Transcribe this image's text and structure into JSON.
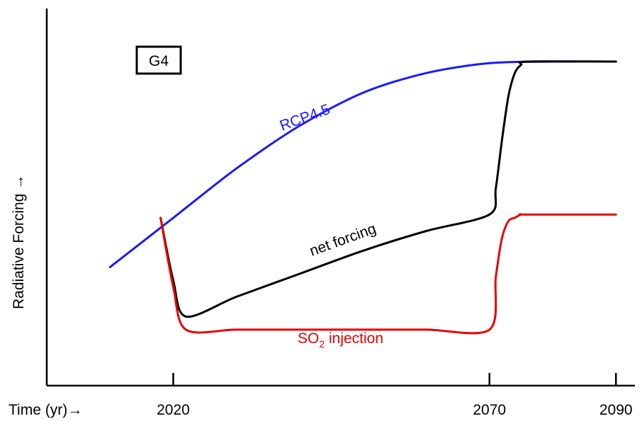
{
  "chart_data": {
    "type": "line",
    "title": "",
    "xlabel": "Time (yr)→",
    "ylabel": "Radiative Forcing →",
    "xlim": [
      2000,
      2093
    ],
    "ylim": [
      0,
      1
    ],
    "x_ticks": [
      "2020",
      "2070",
      "2090"
    ],
    "grid": false,
    "legend": "none",
    "scenario_box": "G4",
    "series": [
      {
        "name": "RCP4.5",
        "color": "#1a1aff",
        "x": [
          2010,
          2020,
          2030,
          2040,
          2050,
          2060,
          2070,
          2080,
          2090
        ],
        "y": [
          0.36,
          0.51,
          0.66,
          0.79,
          0.89,
          0.95,
          0.98,
          0.985,
          0.985
        ]
      },
      {
        "name": "net forcing",
        "color": "#000000",
        "x": [
          2018,
          2020,
          2022,
          2030,
          2040,
          2050,
          2060,
          2070,
          2071,
          2072,
          2073,
          2074,
          2075,
          2076,
          2090
        ],
        "y": [
          0.51,
          0.32,
          0.21,
          0.27,
          0.34,
          0.41,
          0.47,
          0.52,
          0.6,
          0.75,
          0.88,
          0.95,
          0.975,
          0.985,
          0.985
        ]
      },
      {
        "name": "SO",
        "name_sub": "2",
        "name_suffix": " injection",
        "color": "#e60000",
        "x": [
          2018,
          2020,
          2022,
          2030,
          2040,
          2050,
          2060,
          2070,
          2071,
          2072,
          2073,
          2074,
          2075,
          2076,
          2090
        ],
        "y": [
          0.51,
          0.3,
          0.17,
          0.17,
          0.17,
          0.17,
          0.17,
          0.17,
          0.33,
          0.45,
          0.5,
          0.51,
          0.52,
          0.52,
          0.52
        ]
      }
    ]
  }
}
